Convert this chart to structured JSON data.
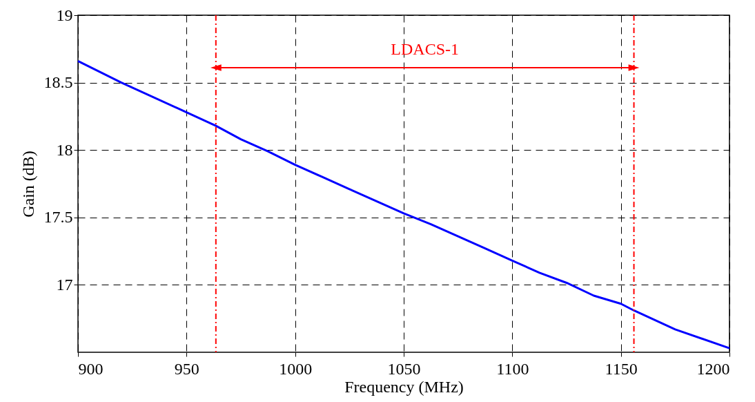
{
  "chart_data": {
    "type": "line",
    "xlabel": "Frequency (MHz)",
    "ylabel": "Gain (dB)",
    "x": [
      900,
      920,
      950,
      963.5,
      975,
      987.5,
      1000,
      1012.5,
      1025,
      1037.5,
      1050,
      1062.5,
      1075,
      1087.5,
      1100,
      1112.5,
      1125,
      1137.5,
      1150,
      1156,
      1175,
      1200
    ],
    "series": [
      {
        "color": "#0000ff",
        "values": [
          18.66,
          18.5,
          18.28,
          18.18,
          18.08,
          17.99,
          17.89,
          17.8,
          17.71,
          17.62,
          17.53,
          17.45,
          17.36,
          17.27,
          17.18,
          17.09,
          17.015,
          16.92,
          16.86,
          16.81,
          16.67,
          16.53
        ]
      }
    ],
    "xlim": [
      900,
      1200
    ],
    "ylim": [
      16.5,
      19
    ],
    "xticks": [
      900,
      950,
      1000,
      1050,
      1100,
      1150,
      1200
    ],
    "yticks": [
      17,
      17.5,
      18,
      18.5,
      19
    ],
    "grid": true,
    "line_style": "solid",
    "ref_lines": [
      {
        "axis": "x",
        "value": 963.5,
        "label": null,
        "color": "#ff0000",
        "line_style": "dashed"
      },
      {
        "axis": "x",
        "value": 1156,
        "label": null,
        "color": "#ff0000",
        "line_style": "dashed"
      }
    ],
    "annotations": [
      "LDACS-1"
    ]
  }
}
